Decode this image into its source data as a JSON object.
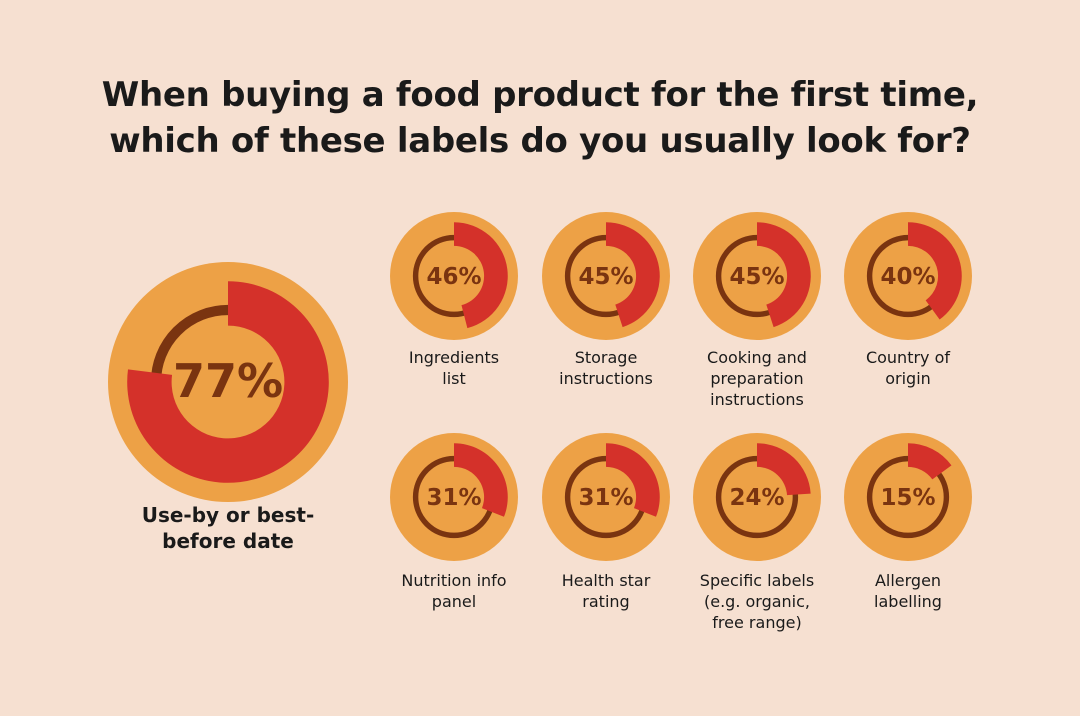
{
  "chart_data": {
    "type": "pie",
    "title_lines": [
      "When buying a food product for the first time,",
      "which of these labels do you usually look for?"
    ],
    "unit": "%",
    "colors": {
      "background": "#f6e0d1",
      "disc": "#eda146",
      "fill": "#d4312a",
      "track": "#7a3410",
      "percent_text": "#7a3410"
    },
    "items": [
      {
        "value": 77,
        "label_lines": [
          "Use-by or best-",
          "before date"
        ]
      },
      {
        "value": 46,
        "label_lines": [
          "Ingredients",
          "list"
        ]
      },
      {
        "value": 45,
        "label_lines": [
          "Storage",
          "instructions"
        ]
      },
      {
        "value": 45,
        "label_lines": [
          "Cooking and",
          "preparation",
          "instructions"
        ]
      },
      {
        "value": 40,
        "label_lines": [
          "Country of",
          "origin"
        ]
      },
      {
        "value": 31,
        "label_lines": [
          "Nutrition info",
          "panel"
        ]
      },
      {
        "value": 31,
        "label_lines": [
          "Health star",
          "rating"
        ]
      },
      {
        "value": 24,
        "label_lines": [
          "Specific labels",
          "(e.g. organic,",
          "free range)"
        ]
      },
      {
        "value": 15,
        "label_lines": [
          "Allergen",
          "labelling"
        ]
      }
    ]
  }
}
